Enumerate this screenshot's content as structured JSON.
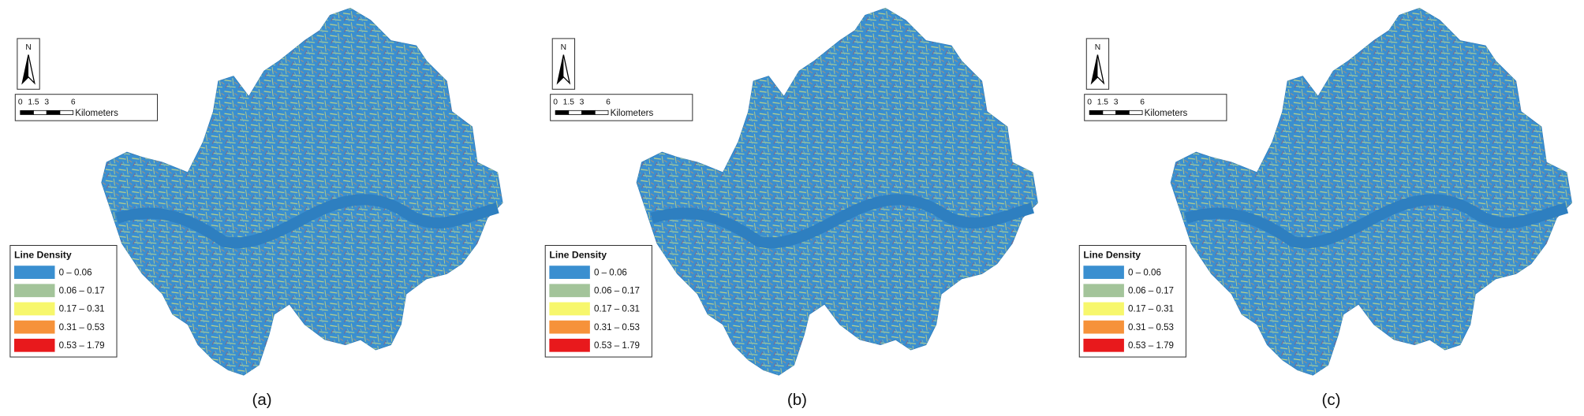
{
  "panels": [
    {
      "label": "(a)",
      "north": "N",
      "scale_bar": {
        "ticks": [
          "0",
          "1.5",
          "3",
          "6"
        ],
        "unit": "Kilometers"
      },
      "legend": {
        "title": "Line Density",
        "items": [
          {
            "label": "0 – 0.06",
            "color": "#3a8fd0"
          },
          {
            "label": "0.06 – 0.17",
            "color": "#a3c49a"
          },
          {
            "label": "0.17 – 0.31",
            "color": "#f7f76c"
          },
          {
            "label": "0.31 – 0.53",
            "color": "#f6923a"
          },
          {
            "label": "0.53 – 1.79",
            "color": "#e8191c"
          }
        ]
      }
    },
    {
      "label": "(b)",
      "north": "N",
      "scale_bar": {
        "ticks": [
          "0",
          "1.5",
          "3",
          "6"
        ],
        "unit": "Kilometers"
      },
      "legend": {
        "title": "Line Density",
        "items": [
          {
            "label": "0 – 0.06",
            "color": "#3a8fd0"
          },
          {
            "label": "0.06 – 0.17",
            "color": "#a3c49a"
          },
          {
            "label": "0.17 – 0.31",
            "color": "#f7f76c"
          },
          {
            "label": "0.31 – 0.53",
            "color": "#f6923a"
          },
          {
            "label": "0.53 – 1.79",
            "color": "#e8191c"
          }
        ]
      }
    },
    {
      "label": "(c)",
      "north": "N",
      "scale_bar": {
        "ticks": [
          "0",
          "1.5",
          "3",
          "6"
        ],
        "unit": "Kilometers"
      },
      "legend": {
        "title": "Line Density",
        "items": [
          {
            "label": "0 – 0.06",
            "color": "#3a8fd0"
          },
          {
            "label": "0.06 – 0.17",
            "color": "#a3c49a"
          },
          {
            "label": "0.17 – 0.31",
            "color": "#f7f76c"
          },
          {
            "label": "0.31 – 0.53",
            "color": "#f6923a"
          },
          {
            "label": "0.53 – 1.79",
            "color": "#e8191c"
          }
        ]
      }
    }
  ]
}
